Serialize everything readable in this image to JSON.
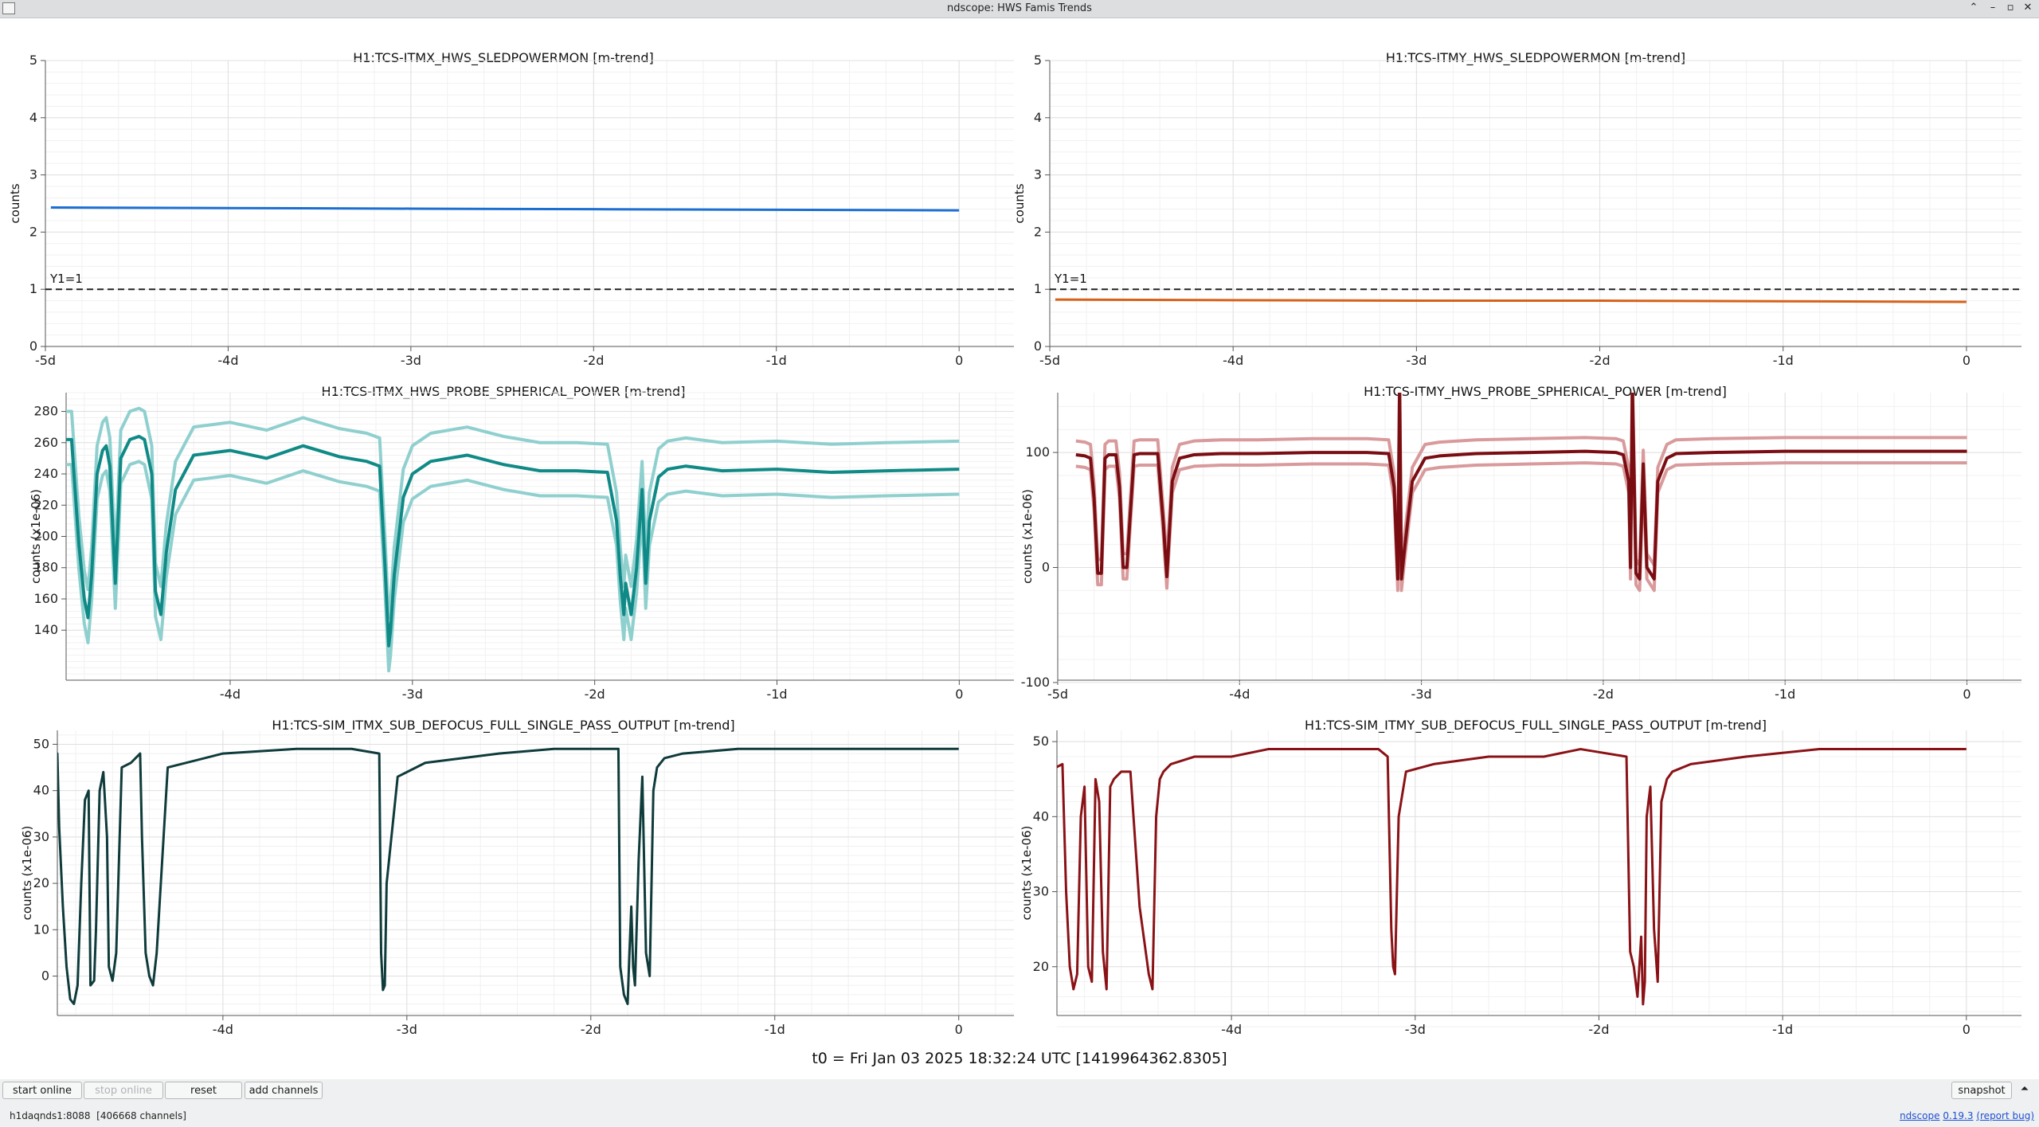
{
  "window": {
    "title": "ndscope: HWS Famis Trends"
  },
  "t0_text": "t0 = Fri Jan 03 2025 18:32:24 UTC [1419964362.8305]",
  "toolbar": {
    "start_online": "start online",
    "stop_online": "stop online",
    "reset": "reset",
    "add_channels": "add channels",
    "snapshot": "snapshot"
  },
  "status": {
    "server": "h1daqnds1:8088",
    "channels": "[406668 channels]",
    "app_name": "ndscope",
    "version": "0.19.3",
    "report_bug": "(report bug)"
  },
  "colors": {
    "itmx_sled": "#1c6fd1",
    "itmy_sled": "#d6621a",
    "itmx_probe_mean": "#0f8a86",
    "itmx_probe_band": "#8fd0cf",
    "itmy_probe_mean": "#7a0d12",
    "itmy_probe_band": "#d99a9c",
    "itmx_sim": "#0f3b3b",
    "itmy_sim": "#8a1216"
  },
  "chart_data": [
    {
      "type": "line",
      "title": "H1:TCS-ITMX_HWS_SLEDPOWERMON [m-trend]",
      "ylabel": "counts",
      "xlim": [
        -5,
        0.3
      ],
      "ylim": [
        0,
        5
      ],
      "xticks": [
        "-5d",
        "-4d",
        "-3d",
        "-2d",
        "-1d",
        "0"
      ],
      "yticks": [
        "0",
        "1",
        "2",
        "3",
        "4",
        "5"
      ],
      "grid": true,
      "annotation": {
        "label": "Y1=1",
        "y": 1
      },
      "series": [
        {
          "color": "itmx_sled",
          "x": [
            -4.97,
            -4,
            -3,
            -2,
            -1,
            0
          ],
          "y": [
            2.43,
            2.42,
            2.41,
            2.4,
            2.39,
            2.38
          ]
        }
      ]
    },
    {
      "type": "line",
      "title": "H1:TCS-ITMY_HWS_SLEDPOWERMON [m-trend]",
      "ylabel": "counts",
      "xlim": [
        -5,
        0.3
      ],
      "ylim": [
        0,
        5
      ],
      "xticks": [
        "-5d",
        "-4d",
        "-3d",
        "-2d",
        "-1d",
        "0"
      ],
      "yticks": [
        "0",
        "1",
        "2",
        "3",
        "4",
        "5"
      ],
      "grid": true,
      "annotation": {
        "label": "Y1=1",
        "y": 1
      },
      "series": [
        {
          "color": "itmy_sled",
          "x": [
            -4.97,
            -4,
            -3,
            -2,
            -1,
            0
          ],
          "y": [
            0.82,
            0.81,
            0.8,
            0.8,
            0.79,
            0.78
          ]
        }
      ]
    },
    {
      "type": "line",
      "title": "H1:TCS-ITMX_HWS_PROBE_SPHERICAL_POWER [m-trend]",
      "ylabel": "counts (x1e-06)",
      "xlim": [
        -4.9,
        0.3
      ],
      "ylim": [
        108,
        292
      ],
      "xticks": [
        "-4d",
        "-3d",
        "-2d",
        "-1d",
        "0"
      ],
      "yticks": [
        "140",
        "160",
        "180",
        "200",
        "220",
        "240",
        "260",
        "280"
      ],
      "grid": true,
      "band": [
        16,
        18
      ],
      "series": [
        {
          "color": "itmx_probe_mean",
          "x": [
            -4.9,
            -4.87,
            -4.83,
            -4.8,
            -4.78,
            -4.76,
            -4.73,
            -4.7,
            -4.68,
            -4.66,
            -4.63,
            -4.6,
            -4.55,
            -4.5,
            -4.47,
            -4.43,
            -4.41,
            -4.38,
            -4.35,
            -4.3,
            -4.2,
            -4.0,
            -3.8,
            -3.6,
            -3.4,
            -3.25,
            -3.18,
            -3.15,
            -3.13,
            -3.12,
            -3.1,
            -3.05,
            -3.0,
            -2.9,
            -2.7,
            -2.5,
            -2.3,
            -2.1,
            -1.93,
            -1.88,
            -1.86,
            -1.84,
            -1.83,
            -1.8,
            -1.77,
            -1.74,
            -1.72,
            -1.7,
            -1.65,
            -1.6,
            -1.5,
            -1.3,
            -1.0,
            -0.7,
            -0.4,
            0
          ],
          "y": [
            262,
            262,
            195,
            160,
            148,
            175,
            240,
            255,
            258,
            245,
            170,
            250,
            262,
            264,
            262,
            240,
            165,
            150,
            190,
            230,
            252,
            255,
            250,
            258,
            251,
            248,
            245,
            180,
            130,
            140,
            175,
            225,
            240,
            248,
            252,
            246,
            242,
            242,
            241,
            210,
            175,
            150,
            170,
            150,
            180,
            230,
            170,
            210,
            238,
            243,
            245,
            242,
            243,
            241,
            242,
            243
          ]
        }
      ]
    },
    {
      "type": "line",
      "title": "H1:TCS-ITMY_HWS_PROBE_SPHERICAL_POWER [m-trend]",
      "ylabel": "counts (x1e-06)",
      "xlim": [
        -5,
        0.3
      ],
      "ylim": [
        -98,
        152
      ],
      "xticks": [
        "-5d",
        "-4d",
        "-3d",
        "-2d",
        "-1d",
        "0"
      ],
      "yticks": [
        "-100",
        "0",
        "100"
      ],
      "grid": true,
      "band": [
        10,
        12
      ],
      "series": [
        {
          "color": "itmy_probe_mean",
          "x": [
            -4.9,
            -4.85,
            -4.82,
            -4.8,
            -4.78,
            -4.76,
            -4.74,
            -4.72,
            -4.68,
            -4.66,
            -4.64,
            -4.62,
            -4.58,
            -4.55,
            -4.5,
            -4.45,
            -4.42,
            -4.4,
            -4.37,
            -4.33,
            -4.25,
            -4.1,
            -3.9,
            -3.6,
            -3.3,
            -3.18,
            -3.15,
            -3.13,
            -3.12,
            -3.11,
            -3.09,
            -3.05,
            -2.98,
            -2.9,
            -2.7,
            -2.4,
            -2.1,
            -1.93,
            -1.89,
            -1.86,
            -1.85,
            -1.84,
            -1.82,
            -1.8,
            -1.78,
            -1.76,
            -1.72,
            -1.7,
            -1.65,
            -1.6,
            -1.4,
            -1.0,
            -0.6,
            -0.3,
            0
          ],
          "y": [
            98,
            97,
            95,
            60,
            -5,
            -5,
            95,
            98,
            98,
            70,
            0,
            0,
            98,
            99,
            99,
            99,
            40,
            -8,
            75,
            95,
            98,
            99,
            99,
            100,
            100,
            99,
            70,
            -10,
            160,
            -10,
            20,
            75,
            95,
            97,
            99,
            100,
            101,
            100,
            98,
            75,
            0,
            160,
            -5,
            -10,
            90,
            0,
            -10,
            75,
            95,
            99,
            100,
            101,
            101,
            101,
            101
          ]
        }
      ]
    },
    {
      "type": "line",
      "title": "H1:TCS-SIM_ITMX_SUB_DEFOCUS_FULL_SINGLE_PASS_OUTPUT [m-trend]",
      "ylabel": "counts (x1e-06)",
      "xlim": [
        -4.9,
        0.3
      ],
      "ylim": [
        -8.5,
        53
      ],
      "xticks": [
        "-4d",
        "-3d",
        "-2d",
        "-1d",
        "0"
      ],
      "yticks": [
        "0",
        "10",
        "20",
        "30",
        "40",
        "50"
      ],
      "grid": true,
      "series": [
        {
          "color": "itmx_sim",
          "x": [
            -5.0,
            -4.9,
            -4.89,
            -4.87,
            -4.85,
            -4.83,
            -4.81,
            -4.79,
            -4.77,
            -4.75,
            -4.73,
            -4.72,
            -4.7,
            -4.69,
            -4.67,
            -4.65,
            -4.63,
            -4.62,
            -4.6,
            -4.58,
            -4.55,
            -4.5,
            -4.45,
            -4.44,
            -4.42,
            -4.4,
            -4.38,
            -4.36,
            -4.3,
            -4.0,
            -3.6,
            -3.3,
            -3.15,
            -3.14,
            -3.13,
            -3.12,
            -3.11,
            -3.05,
            -2.9,
            -2.5,
            -2.2,
            -1.85,
            -1.84,
            -1.82,
            -1.8,
            -1.79,
            -1.78,
            -1.77,
            -1.76,
            -1.74,
            -1.72,
            -1.7,
            -1.68,
            -1.66,
            -1.64,
            -1.6,
            -1.5,
            -1.2,
            -0.8,
            -0.4,
            0
          ],
          "y": [
            47,
            48,
            32,
            15,
            2,
            -5,
            -6,
            -2,
            20,
            38,
            40,
            -2,
            -1,
            10,
            40,
            44,
            30,
            2,
            -1,
            5,
            45,
            46,
            48,
            30,
            5,
            0,
            -2,
            5,
            45,
            48,
            49,
            49,
            48,
            5,
            -3,
            -2,
            20,
            43,
            46,
            48,
            49,
            49,
            2,
            -4,
            -6,
            5,
            15,
            2,
            -2,
            25,
            43,
            5,
            0,
            40,
            45,
            47,
            48,
            49,
            49,
            49,
            49
          ]
        }
      ]
    },
    {
      "type": "line",
      "title": "H1:TCS-SIM_ITMY_SUB_DEFOCUS_FULL_SINGLE_PASS_OUTPUT [m-trend]",
      "ylabel": "counts (x1e-06)",
      "xlim": [
        -4.95,
        0.3
      ],
      "ylim": [
        13.5,
        51.5
      ],
      "xticks": [
        "-4d",
        "-3d",
        "-2d",
        "-1d",
        "0"
      ],
      "yticks": [
        "20",
        "30",
        "40",
        "50"
      ],
      "grid": true,
      "series": [
        {
          "color": "itmy_sim",
          "x": [
            -5.0,
            -4.92,
            -4.9,
            -4.88,
            -4.86,
            -4.84,
            -4.82,
            -4.8,
            -4.78,
            -4.76,
            -4.74,
            -4.72,
            -4.7,
            -4.68,
            -4.66,
            -4.64,
            -4.6,
            -4.55,
            -4.5,
            -4.45,
            -4.43,
            -4.41,
            -4.39,
            -4.37,
            -4.33,
            -4.2,
            -4.0,
            -3.8,
            -3.6,
            -3.4,
            -3.2,
            -3.15,
            -3.13,
            -3.12,
            -3.11,
            -3.09,
            -3.05,
            -2.9,
            -2.6,
            -2.3,
            -2.1,
            -1.85,
            -1.83,
            -1.81,
            -1.79,
            -1.77,
            -1.76,
            -1.75,
            -1.74,
            -1.72,
            -1.7,
            -1.68,
            -1.66,
            -1.63,
            -1.6,
            -1.5,
            -1.2,
            -0.8,
            -0.4,
            0
          ],
          "y": [
            46,
            47,
            30,
            20,
            17,
            19,
            40,
            44,
            20,
            18,
            45,
            42,
            22,
            17,
            44,
            45,
            46,
            46,
            28,
            19,
            17,
            40,
            45,
            46,
            47,
            48,
            48,
            49,
            49,
            49,
            49,
            48,
            25,
            20,
            19,
            40,
            46,
            47,
            48,
            48,
            49,
            48,
            22,
            20,
            16,
            24,
            15,
            18,
            40,
            44,
            25,
            18,
            42,
            45,
            46,
            47,
            48,
            49,
            49,
            49
          ]
        }
      ]
    }
  ]
}
